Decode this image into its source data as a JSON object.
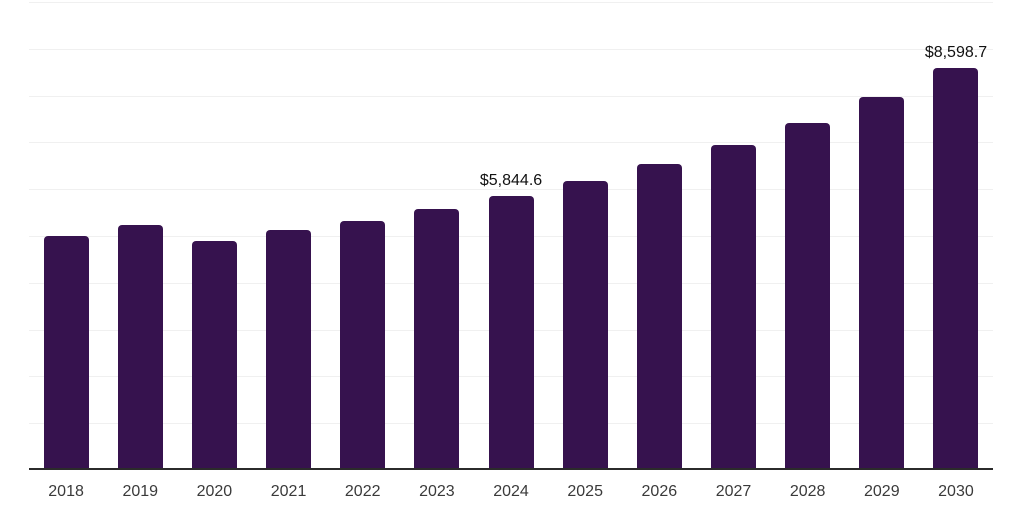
{
  "chart_data": {
    "type": "bar",
    "title": "",
    "xlabel": "",
    "ylabel": "",
    "categories": [
      "2018",
      "2019",
      "2020",
      "2021",
      "2022",
      "2023",
      "2024",
      "2025",
      "2026",
      "2027",
      "2028",
      "2029",
      "2030"
    ],
    "values": [
      5000,
      5230,
      4890,
      5125,
      5320,
      5575,
      5844.6,
      6175,
      6535,
      6940,
      7410,
      7965,
      8598.7
    ],
    "data_labels": {
      "2024": "$5,844.6",
      "2030": "$8,598.7"
    },
    "ylim": [
      0,
      10000
    ],
    "grid": {
      "horizontal": true,
      "interval": 1000,
      "vertical": false
    },
    "legend": "none",
    "colors": {
      "bar": "#36124e",
      "gridline": "#f0f0f0",
      "axis_line": "#2b2b2b",
      "tick_label": "#3a3a3a",
      "data_label": "#111111",
      "background": "#ffffff"
    }
  }
}
